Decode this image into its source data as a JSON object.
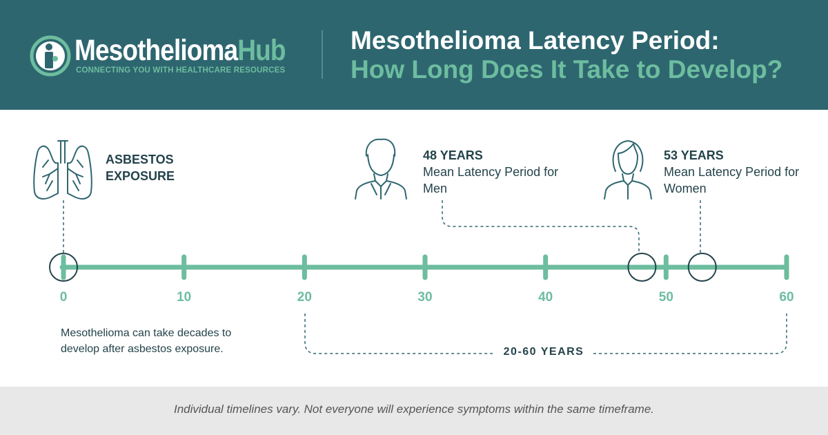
{
  "header": {
    "logo": {
      "name_main": "Mesothelioma",
      "name_accent": "Hub",
      "tagline": "CONNECTING YOU WITH HEALTHCARE RESOURCES"
    },
    "title_line1": "Mesothelioma Latency Period:",
    "title_line2": "How Long Does It Take to Develop?"
  },
  "timeline": {
    "ticks": [
      "0",
      "10",
      "20",
      "30",
      "40",
      "50",
      "60"
    ],
    "range": {
      "min": 0,
      "max": 60
    },
    "markers": [
      {
        "id": "exposure",
        "value": 0,
        "label": "ASBESTOS EXPOSURE",
        "icon": "lungs-icon"
      },
      {
        "id": "men",
        "value": 48,
        "years": "48 YEARS",
        "desc": "Mean Latency Period for Men",
        "icon": "man-icon"
      },
      {
        "id": "women",
        "value": 53,
        "years": "53 YEARS",
        "desc": "Mean Latency Period for Women",
        "icon": "woman-icon"
      }
    ],
    "span": {
      "from": 20,
      "to": 60,
      "label": "20-60 YEARS"
    },
    "note": "Mesothelioma can take decades to develop after asbestos exposure."
  },
  "footer": {
    "text": "Individual timelines vary. Not everyone will experience symptoms within the same timeframe."
  },
  "colors": {
    "header_bg": "#2e6670",
    "accent": "#6dbd9f",
    "dark": "#24434b",
    "footer_bg": "#e8e8e8"
  }
}
